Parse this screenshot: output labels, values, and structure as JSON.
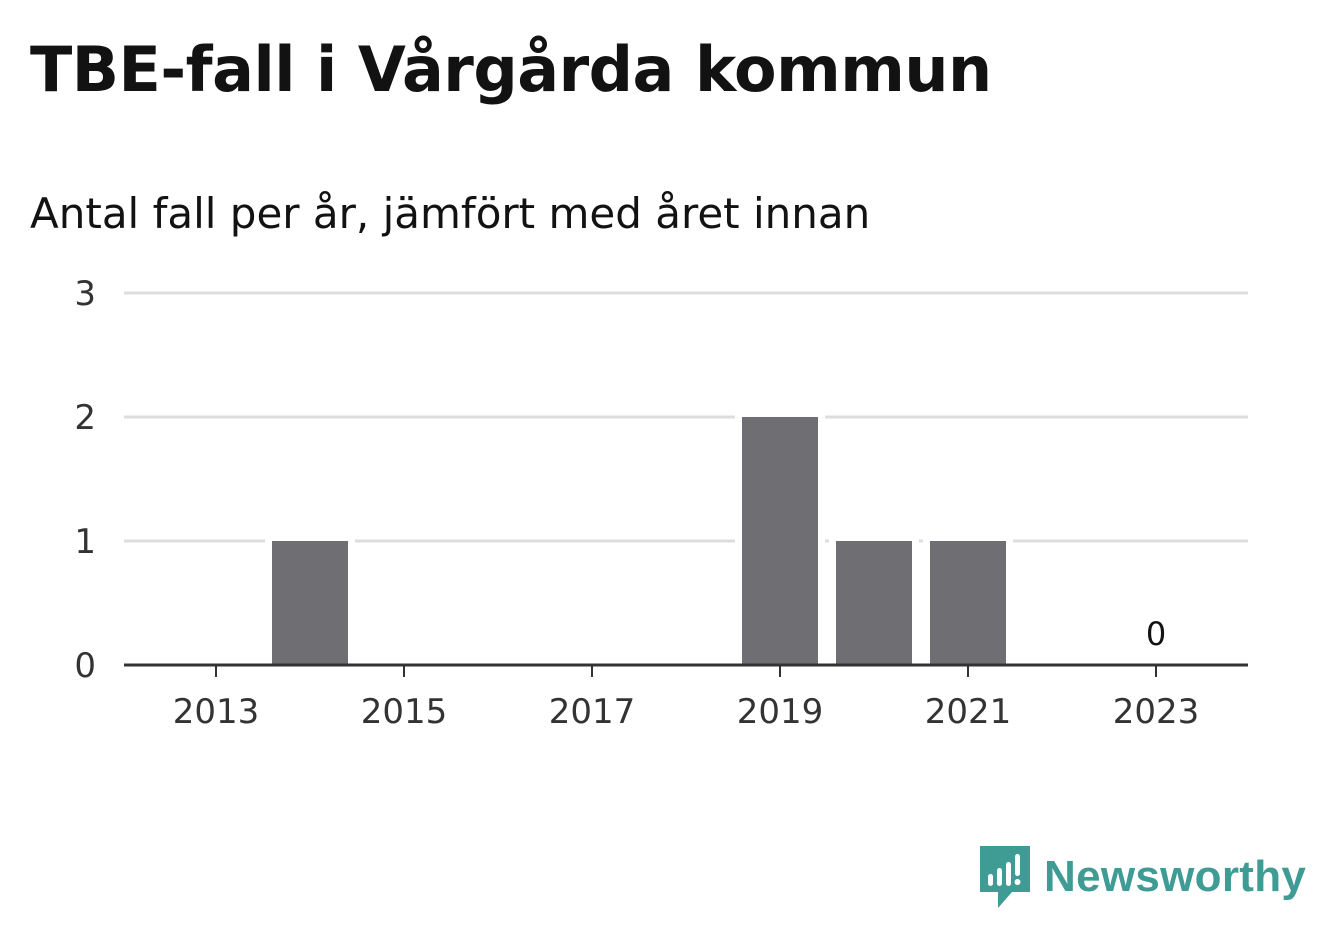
{
  "title": "TBE-fall i Vårgårda kommun",
  "subtitle": "Antal fall per år, jämfört med året innan",
  "brand": {
    "name": "Newsworthy",
    "logo_icon": "newsworthy-bar-chart-icon",
    "color": "#3f9c95"
  },
  "chart_data": {
    "type": "bar",
    "categories": [
      "2013",
      "2014",
      "2015",
      "2016",
      "2017",
      "2018",
      "2019",
      "2020",
      "2021",
      "2022",
      "2023"
    ],
    "values": [
      0,
      1,
      0,
      0,
      0,
      0,
      2,
      1,
      1,
      0,
      0
    ],
    "x_tick_labels": [
      "2013",
      "2015",
      "2017",
      "2019",
      "2021",
      "2023"
    ],
    "y_ticks": [
      0,
      1,
      2,
      3
    ],
    "ylim": [
      0,
      3
    ],
    "xlabel": "",
    "ylabel": "",
    "annotations": [
      {
        "category": "2023",
        "text": "0"
      }
    ],
    "grid": true,
    "legend": "none",
    "colors": {
      "bar": "#6f6e73",
      "grid": "#dddddd",
      "axis": "#333333"
    }
  }
}
